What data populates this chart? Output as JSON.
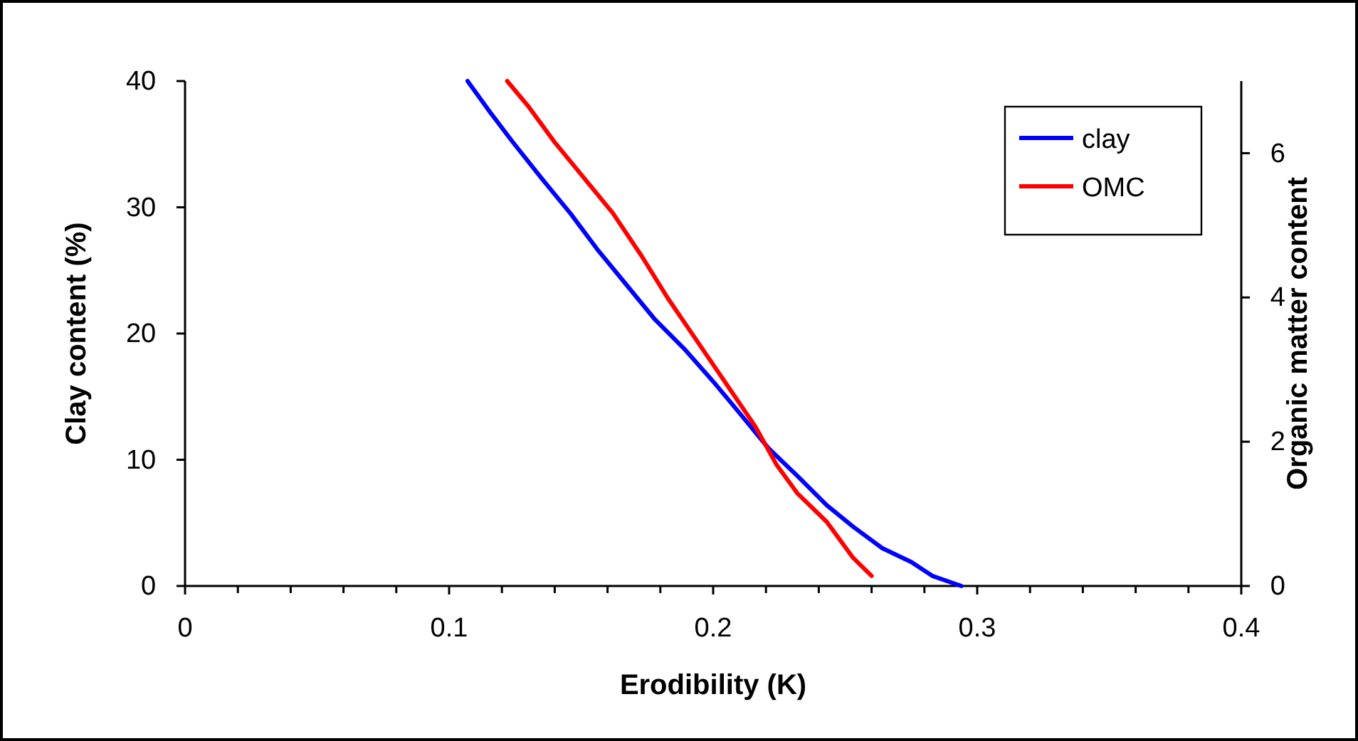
{
  "chart_data": {
    "type": "line",
    "xlabel": "Erodibility (K)",
    "ylabel": "Clay content (%)",
    "y2label": "Organic matter content",
    "xlim": [
      0,
      0.4
    ],
    "ylim": [
      0,
      40
    ],
    "y2lim": [
      0,
      7
    ],
    "xticks": [
      0,
      {
        "value": 0.02,
        "label": null
      },
      {
        "value": 0.04,
        "label": null
      },
      {
        "value": 0.06,
        "label": null
      },
      {
        "value": 0.08,
        "label": null
      },
      0.1,
      {
        "value": 0.12,
        "label": null
      },
      {
        "value": 0.14,
        "label": null
      },
      {
        "value": 0.16,
        "label": null
      },
      {
        "value": 0.18,
        "label": null
      },
      0.2,
      {
        "value": 0.22,
        "label": null
      },
      {
        "value": 0.24,
        "label": null
      },
      {
        "value": 0.26,
        "label": null
      },
      {
        "value": 0.28,
        "label": null
      },
      0.3,
      {
        "value": 0.32,
        "label": null
      },
      {
        "value": 0.34,
        "label": null
      },
      {
        "value": 0.36,
        "label": null
      },
      {
        "value": 0.38,
        "label": null
      },
      0.4
    ],
    "yticks": [
      0,
      10,
      20,
      30,
      40
    ],
    "y2ticks": [
      0,
      2,
      4,
      6
    ],
    "grid": false,
    "legend": "top right",
    "marker": "none",
    "line_style": "solid",
    "series": [
      {
        "name": "clay",
        "color": "#0000ff",
        "x": [
          0.107,
          0.116,
          0.124,
          0.135,
          0.146,
          0.156,
          0.167,
          0.178,
          0.189,
          0.2,
          0.21,
          0.221,
          0.232,
          0.243,
          0.253,
          0.264,
          0.275,
          0.283,
          0.294
        ],
        "values": [
          40,
          37.4,
          35.2,
          32.3,
          29.5,
          26.7,
          23.9,
          21.1,
          18.8,
          16.2,
          13.7,
          10.9,
          8.7,
          6.4,
          4.7,
          3.0,
          1.9,
          0.8,
          0
        ]
      },
      {
        "name": "OMC",
        "color": "#ff0000",
        "axis": "y2",
        "x": [
          0.122,
          0.13,
          0.14,
          0.151,
          0.162,
          0.173,
          0.183,
          0.194,
          0.205,
          0.216,
          0.224,
          0.232,
          0.243,
          0.253,
          0.26
        ],
        "values": [
          7,
          6.65,
          6.15,
          5.66,
          5.17,
          4.57,
          3.98,
          3.39,
          2.8,
          2.21,
          1.68,
          1.28,
          0.89,
          0.39,
          0.14
        ]
      }
    ]
  }
}
